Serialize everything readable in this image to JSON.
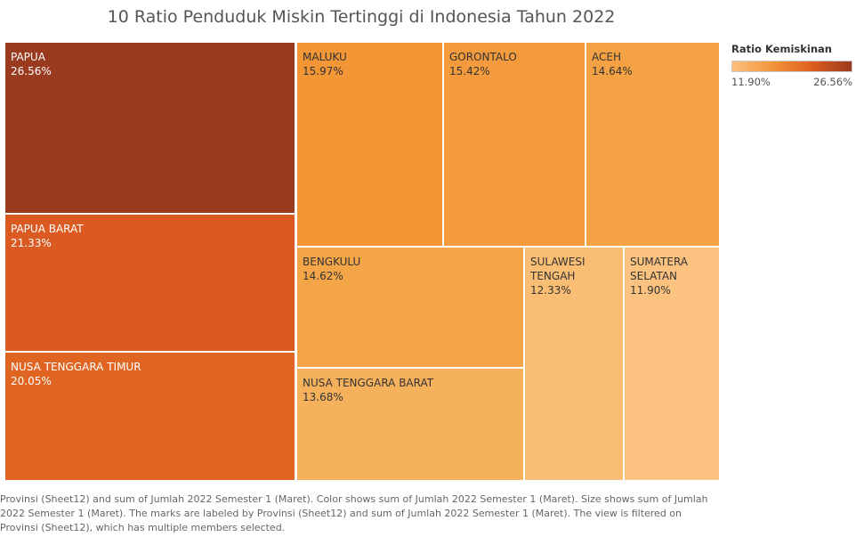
{
  "title": "10 Ratio Penduduk Miskin Tertinggi di Indonesia Tahun 2022",
  "legend": {
    "title": "Ratio Kemiskinan",
    "min_label": "11.90%",
    "max_label": "26.56%",
    "colors": [
      "#fcc07e",
      "#f2963a",
      "#de5f1e",
      "#9a3a1e"
    ]
  },
  "chart_data": {
    "type": "treemap",
    "title": "10 Ratio Penduduk Miskin Tertinggi di Indonesia Tahun 2022",
    "color_measure": "Ratio Kemiskinan",
    "items": [
      {
        "name": "PAPUA",
        "value": 26.56,
        "label": "26.56%",
        "color": "#9a3a1e"
      },
      {
        "name": "PAPUA BARAT",
        "value": 21.33,
        "label": "21.33%",
        "color": "#db5a22"
      },
      {
        "name": "NUSA TENGGARA TIMUR",
        "value": 20.05,
        "label": "20.05%",
        "color": "#e06523"
      },
      {
        "name": "MALUKU",
        "value": 15.97,
        "label": "15.97%",
        "color": "#f29636"
      },
      {
        "name": "GORONTALO",
        "value": 15.42,
        "label": "15.42%",
        "color": "#f39b3d"
      },
      {
        "name": "ACEH",
        "value": 14.64,
        "label": "14.64%",
        "color": "#f4a244"
      },
      {
        "name": "BENGKULU",
        "value": 14.62,
        "label": "14.62%",
        "color": "#f4a548"
      },
      {
        "name": "NUSA TENGGARA BARAT",
        "value": 13.68,
        "label": "13.68%",
        "color": "#f6b15c"
      },
      {
        "name": "SULAWESI TENGAH",
        "value": 12.33,
        "label": "12.33%",
        "color": "#fabd74"
      },
      {
        "name": "SUMATERA SELATAN",
        "value": 11.9,
        "label": "11.90%",
        "color": "#fcc27f"
      }
    ]
  },
  "caption": "Provinsi (Sheet12) and sum of Jumlah 2022 Semester 1 (Maret).  Color shows sum of Jumlah 2022 Semester 1 (Maret).  Size shows sum of Jumlah 2022 Semester 1 (Maret).  The marks are labeled by Provinsi (Sheet12) and sum of Jumlah 2022 Semester 1 (Maret). The view is filtered on Provinsi (Sheet12), which has multiple members selected."
}
